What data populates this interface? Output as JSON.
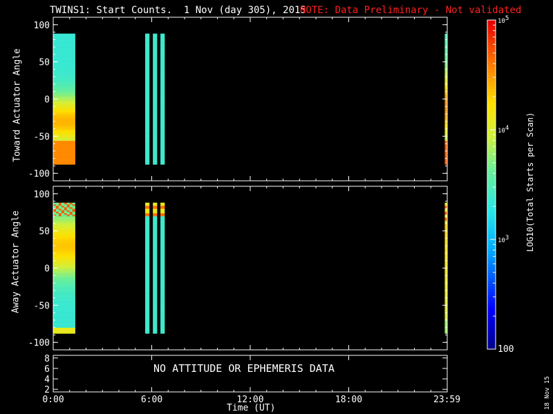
{
  "title": {
    "main": "TWINS1: Start Counts.  1 Nov (day 305), 2015",
    "note": "NOTE: Data Preliminary - Not validated"
  },
  "panels": {
    "toward": {
      "ylabel": "Toward Actuator Angle"
    },
    "away": {
      "ylabel": "Away Actuator Angle"
    },
    "ephem": {
      "message": "NO ATTITUDE OR EPHEMERIS DATA"
    }
  },
  "xaxis": {
    "label": "Time (UT)",
    "ticks": [
      "0:00",
      "6:00",
      "12:00",
      "18:00",
      "23:59"
    ]
  },
  "colorbar": {
    "label": "LOG10(Total Starts per Scan)",
    "ticks": [
      "10^5",
      "10^4",
      "10^3",
      "100"
    ],
    "range": [
      100,
      100000
    ],
    "scale": "log"
  },
  "date_stamp": "18 Nov 15",
  "chart_data": [
    {
      "type": "heatmap",
      "title": "TWINS1: Start Counts.  1 Nov (day 305), 2015",
      "ylabel": "Toward Actuator Angle",
      "xlabel": "Time (UT)",
      "xlim": [
        0,
        24
      ],
      "ylim": [
        -110,
        110
      ],
      "yticks": [
        -100,
        -50,
        0,
        50,
        100
      ],
      "xticks": [
        "0:00",
        "6:00",
        "12:00",
        "18:00",
        "23:59"
      ],
      "angle_range": [
        -88,
        88
      ],
      "segments": [
        {
          "t_start": 0.0,
          "t_end": 1.33,
          "profile": "toward_main"
        },
        {
          "t_start": 5.6,
          "t_end": 5.85,
          "profile": "flat_mid"
        },
        {
          "t_start": 6.07,
          "t_end": 6.32,
          "profile": "flat_mid"
        },
        {
          "t_start": 6.53,
          "t_end": 6.78,
          "profile": "flat_mid"
        },
        {
          "t_start": 23.85,
          "t_end": 24.0,
          "profile": "toward_edge"
        }
      ]
    },
    {
      "type": "heatmap",
      "ylabel": "Away Actuator Angle",
      "xlabel": "Time (UT)",
      "xlim": [
        0,
        24
      ],
      "ylim": [
        -110,
        110
      ],
      "yticks": [
        -100,
        -50,
        0,
        50,
        100
      ],
      "angle_range": [
        -88,
        88
      ],
      "segments": [
        {
          "t_start": 0.0,
          "t_end": 1.33,
          "profile": "away_main"
        },
        {
          "t_start": 5.6,
          "t_end": 5.85,
          "profile": "away_narrow"
        },
        {
          "t_start": 6.07,
          "t_end": 6.32,
          "profile": "away_narrow"
        },
        {
          "t_start": 6.53,
          "t_end": 6.78,
          "profile": "away_narrow"
        },
        {
          "t_start": 23.85,
          "t_end": 24.0,
          "profile": "away_edge"
        }
      ]
    },
    {
      "type": "line",
      "ylim": [
        1.5,
        8.5
      ],
      "yticks": [
        2,
        4,
        6,
        8
      ],
      "series": []
    }
  ]
}
